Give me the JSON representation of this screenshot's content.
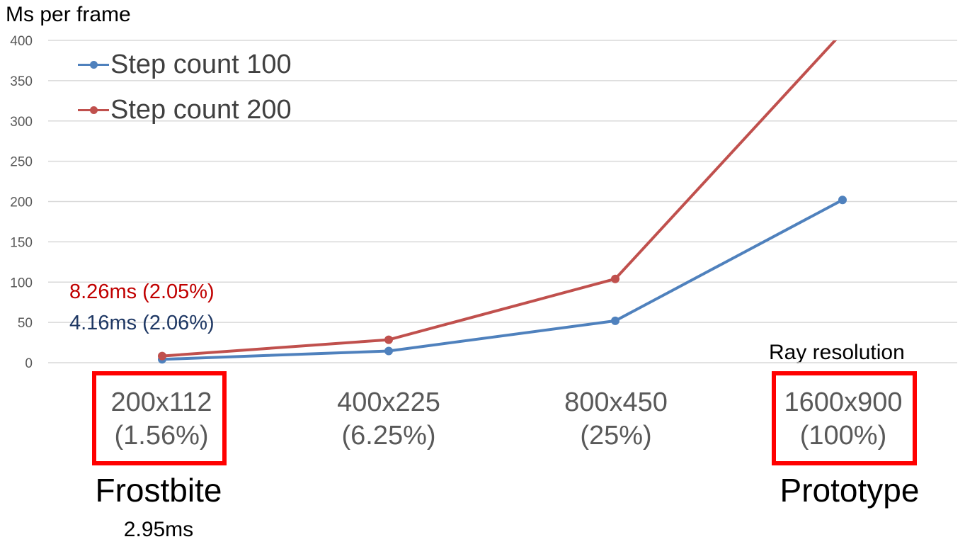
{
  "chart_data": {
    "type": "line",
    "ylabel": "Ms per frame",
    "xlabel": "Ray resolution",
    "ylim": [
      0,
      400
    ],
    "yticks": [
      "0",
      "50",
      "100",
      "150",
      "200",
      "250",
      "300",
      "350",
      "400"
    ],
    "grid": true,
    "legend_position": "top-left",
    "categories": [
      "200x112",
      "400x225",
      "800x450",
      "1600x900"
    ],
    "category_subtitles": [
      "(1.56%)",
      "(6.25%)",
      "(25%)",
      "(100%)"
    ],
    "series": [
      {
        "name": "Step count 100",
        "color": "#4f81bd",
        "values": [
          4.16,
          14.5,
          52,
          202
        ]
      },
      {
        "name": "Step count 200",
        "color": "#c0504d",
        "values": [
          8.26,
          28.5,
          104,
          410
        ]
      }
    ],
    "annotations": {
      "step200_first": {
        "text": "8.26ms (2.05%)",
        "color": "#c00000"
      },
      "step100_first": {
        "text": "4.16ms (2.06%)",
        "color": "#1f3864"
      }
    }
  },
  "callouts": {
    "frostbite": {
      "label": "Frostbite",
      "value": "2.95ms"
    },
    "prototype": {
      "label": "Prototype"
    }
  }
}
